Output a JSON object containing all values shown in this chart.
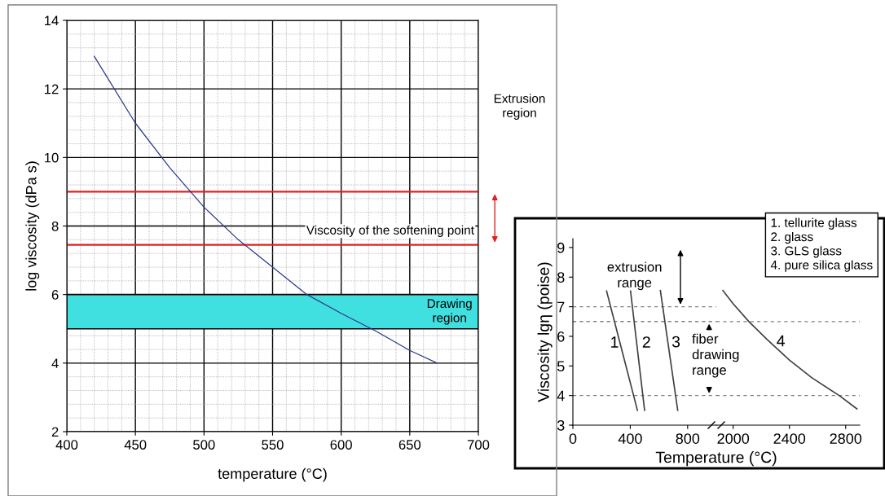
{
  "chart_data": [
    {
      "type": "line",
      "xlabel": "temperature (°C)",
      "ylabel": "log viscosity (dPa s)",
      "x": [
        420,
        450,
        475,
        500,
        525,
        550,
        575,
        600,
        625,
        650,
        670
      ],
      "series": [
        {
          "color": "#2b3a8c",
          "values": [
            12.95,
            11.0,
            9.7,
            8.55,
            7.6,
            6.8,
            6.0,
            5.45,
            4.94,
            4.37,
            4.0
          ]
        }
      ],
      "xlim": [
        400,
        700
      ],
      "ylim": [
        2,
        14
      ],
      "xticks": [
        400,
        450,
        500,
        550,
        600,
        650,
        700
      ],
      "yticks": [
        2,
        4,
        6,
        8,
        10,
        12,
        14
      ],
      "grid": true,
      "ref_lines": [
        {
          "axis": "y",
          "value": 9,
          "color": "#e02020"
        },
        {
          "axis": "y",
          "value": 7.45,
          "color": "#e02020",
          "label": "Viscosity of the softening point"
        }
      ],
      "bands": [
        {
          "axis": "y",
          "from": 5,
          "to": 6,
          "color": "#40e0e0",
          "label": "Drawing region"
        }
      ],
      "annotations": [
        "Extrusion region"
      ]
    },
    {
      "type": "line",
      "ylabel": "Viscosity lgη (poise)",
      "xlabel": "Temperature (°C)",
      "series": [
        {
          "name": "1. tellurite glass",
          "color": "#404040",
          "x": [
            235,
            450
          ],
          "values": [
            7.53,
            3.5
          ]
        },
        {
          "name": "2. glass",
          "color": "#404040",
          "x": [
            402,
            500
          ],
          "values": [
            7.53,
            3.5
          ]
        },
        {
          "name": "3. GLS glass",
          "color": "#404040",
          "x": [
            610,
            731
          ],
          "values": [
            7.55,
            3.5
          ]
        }
      ],
      "xlim": [
        0,
        1000
      ],
      "ylim": [
        3,
        9.3
      ],
      "xticks": [
        0,
        400,
        800
      ],
      "yticks": [
        3,
        4,
        5,
        6,
        7,
        8,
        9
      ],
      "ref_lines": [
        {
          "axis": "y",
          "value": 7,
          "color": "#808080",
          "line_style": "dashed"
        },
        {
          "axis": "y",
          "value": 6.5,
          "color": "#808080",
          "line_style": "dashed"
        },
        {
          "axis": "y",
          "value": 4,
          "color": "#808080",
          "line_style": "dashed"
        }
      ],
      "annotations": [
        "1",
        "2",
        "3",
        "extrusion range",
        "fiber drawing range"
      ]
    },
    {
      "type": "line",
      "series": [
        {
          "name": "4. pure silica glass",
          "color": "#404040",
          "x": [
            1927,
            2000,
            2112,
            2240,
            2400,
            2560,
            2754,
            2880
          ],
          "values": [
            7.55,
            7.1,
            6.5,
            5.9,
            5.2,
            4.6,
            4.0,
            3.55
          ]
        }
      ],
      "xlim": [
        1880,
        2900
      ],
      "ylim": [
        3,
        9
      ],
      "xticks": [
        2000,
        2400,
        2800
      ],
      "yticks": [
        3,
        4,
        5,
        6,
        7,
        8,
        9
      ],
      "tick_labels": "x",
      "legend": "top right",
      "ref_lines": [
        {
          "axis": "y",
          "value": 6.5,
          "color": "#808080",
          "line_style": "dashed"
        },
        {
          "axis": "y",
          "value": 4,
          "color": "#808080",
          "line_style": "dashed"
        }
      ],
      "annotations": [
        "4"
      ]
    }
  ]
}
